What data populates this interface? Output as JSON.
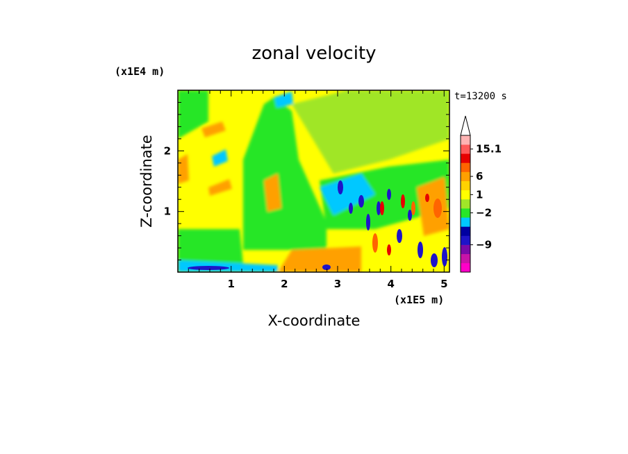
{
  "chart_data": {
    "type": "heatmap",
    "title": "zonal velocity",
    "xlabel": "X-coordinate",
    "ylabel": "Z-coordinate",
    "x_unit": "(x1E5 m)",
    "y_unit": "(x1E4 m)",
    "time_label": "t=13200 s",
    "xlim": [
      0,
      5.1
    ],
    "ylim": [
      0,
      3.0
    ],
    "x_ticks": [
      1,
      2,
      3,
      4,
      5
    ],
    "y_ticks": [
      1,
      2
    ],
    "colorbar": {
      "labels": [
        {
          "value": 15.1,
          "text": "15.1"
        },
        {
          "value": 6,
          "text": "6"
        },
        {
          "value": 1,
          "text": "1"
        },
        {
          "value": -2,
          "text": "−2"
        },
        {
          "value": -9,
          "text": "−9"
        }
      ],
      "extend_max": true,
      "colors": [
        "#ff00c8",
        "#c814a8",
        "#7a0aa8",
        "#1e14c8",
        "#0000a0",
        "#00c8ff",
        "#28e628",
        "#a0e628",
        "#ffff00",
        "#ffd200",
        "#ffa000",
        "#ff6400",
        "#e60000",
        "#ff5a5a",
        "#ffb4b4"
      ]
    }
  }
}
